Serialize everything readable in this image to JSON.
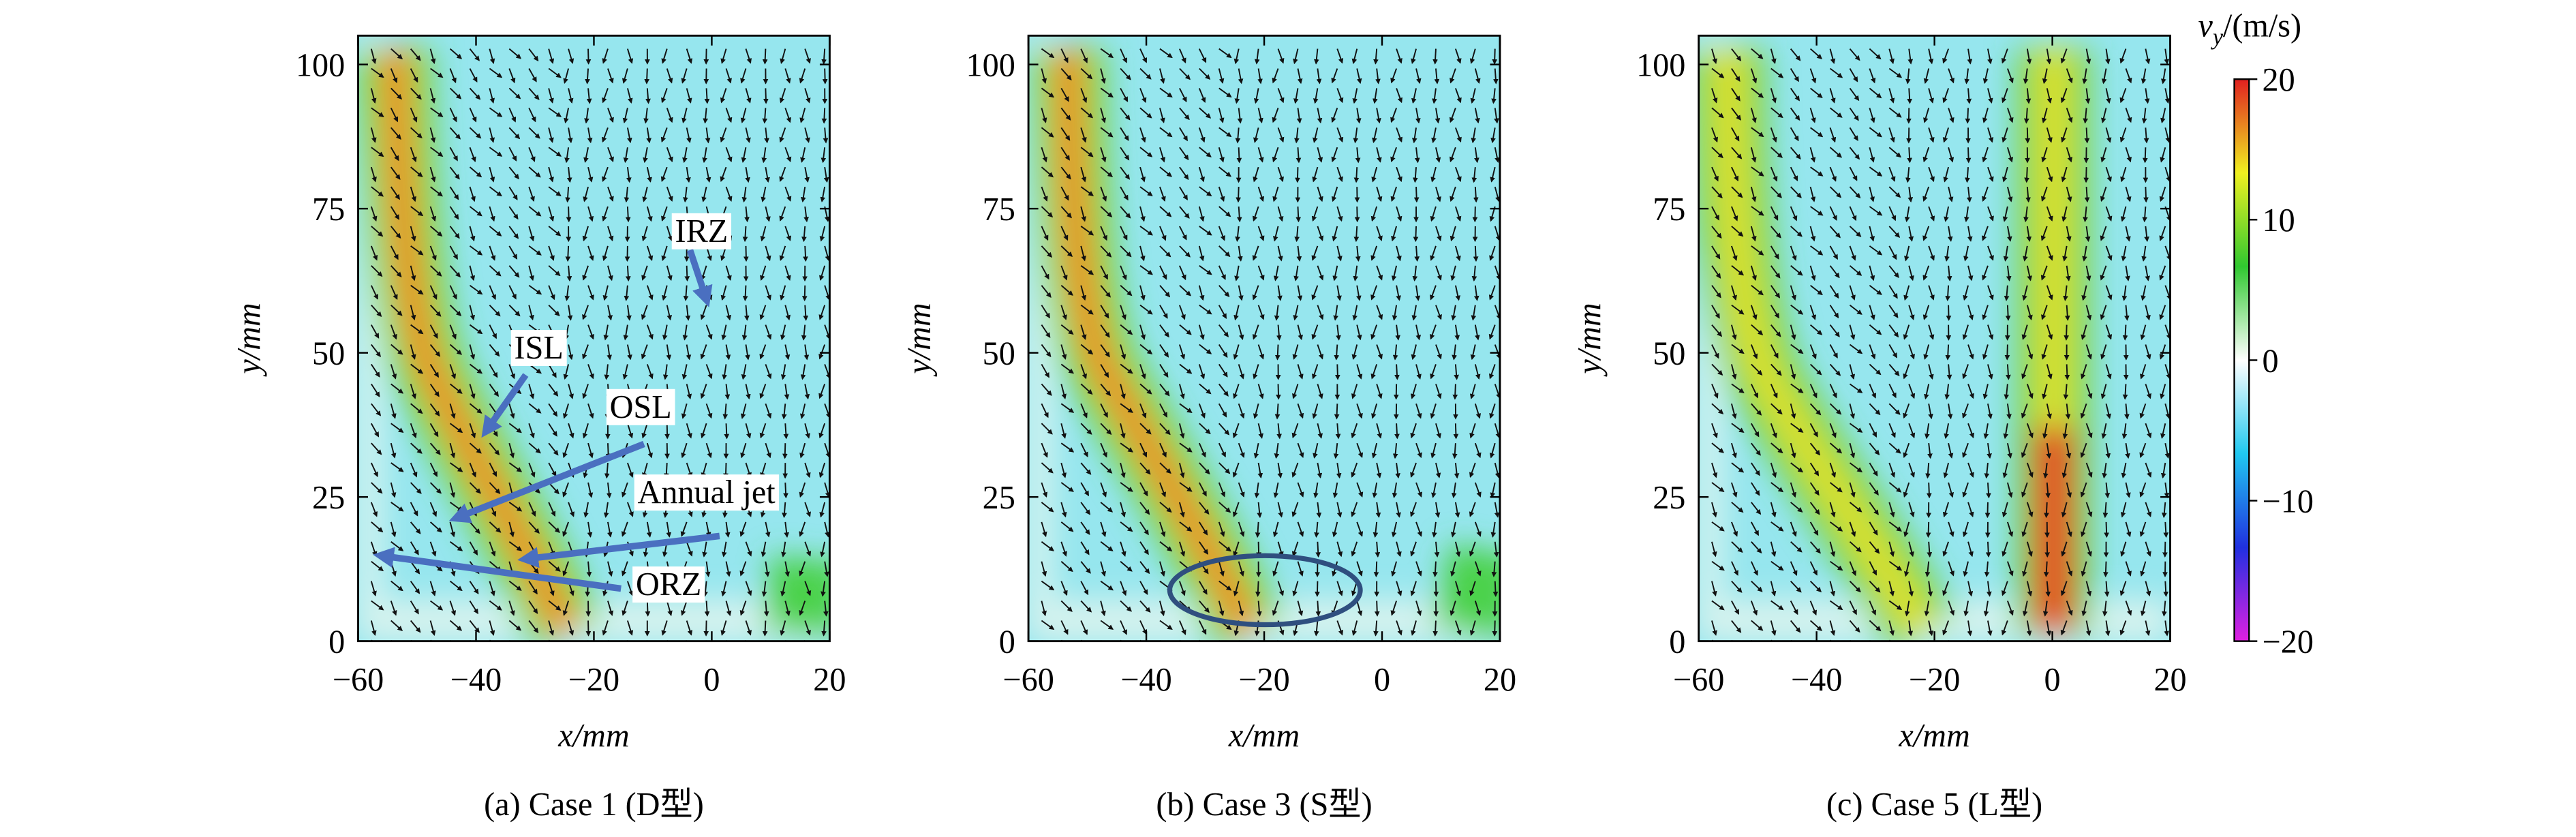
{
  "chart_data": [
    {
      "type": "contour",
      "caption": "(a) Case 1 (D型)",
      "x_label": "x/mm",
      "y_label": "y/mm",
      "xlim": [
        -60,
        20
      ],
      "ylim": [
        0,
        105
      ],
      "xticks": [
        {
          "value": -60,
          "label": "−60"
        },
        {
          "value": -40,
          "label": "−40"
        },
        {
          "value": -20,
          "label": "−20"
        },
        0,
        20
      ],
      "yticks": [
        0,
        25,
        50,
        75,
        100
      ],
      "annotations": [
        "IRZ",
        "ISL",
        "OSL",
        "Annual jet",
        "ORZ"
      ]
    },
    {
      "type": "contour",
      "caption": "(b) Case 3 (S型)",
      "x_label": "x/mm",
      "y_label": "y/mm",
      "xlim": [
        -60,
        20
      ],
      "ylim": [
        0,
        105
      ],
      "xticks": [
        {
          "value": -60,
          "label": "−60"
        },
        {
          "value": -40,
          "label": "−40"
        },
        {
          "value": -20,
          "label": "−20"
        },
        0,
        20
      ],
      "yticks": [
        0,
        25,
        50,
        75,
        100
      ]
    },
    {
      "type": "contour",
      "caption": "(c) Case 5 (L型)",
      "x_label": "x/mm",
      "y_label": "y/mm",
      "xlim": [
        -60,
        20
      ],
      "ylim": [
        0,
        105
      ],
      "xticks": [
        {
          "value": -60,
          "label": "−60"
        },
        {
          "value": -40,
          "label": "−40"
        },
        {
          "value": -20,
          "label": "−20"
        },
        0,
        20
      ],
      "yticks": [
        0,
        25,
        50,
        75,
        100
      ]
    }
  ],
  "colorbar": {
    "symbol": "v",
    "subscript": "y",
    "unit": "/(m/s)",
    "lim": [
      -20,
      20
    ],
    "ticks": [
      {
        "value": -20,
        "label": "−20"
      },
      {
        "value": -10,
        "label": "−10"
      },
      0,
      10,
      20
    ],
    "colormap": [
      "#e020e0",
      "#2030e0",
      "#20c8f0",
      "#ffffff",
      "#30c830",
      "#f0f020",
      "#e02020"
    ]
  }
}
